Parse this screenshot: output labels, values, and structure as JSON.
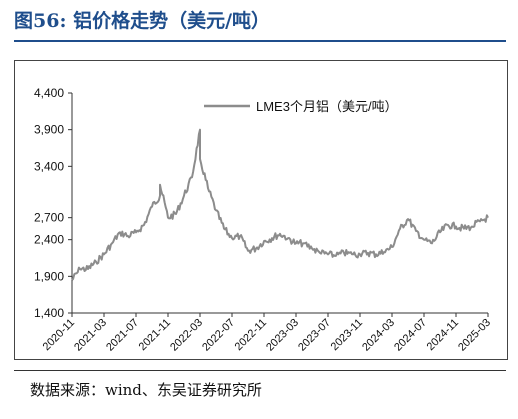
{
  "figure": {
    "title": "图56:  铝价格走势（美元/吨）",
    "source": "数据来源：wind、东吴证券研究所"
  },
  "chart_data": {
    "type": "line",
    "title": "",
    "xlabel": "",
    "ylabel": "",
    "ylim": [
      1400,
      4400
    ],
    "y_ticks": [
      1400,
      1900,
      2400,
      2700,
      3400,
      3900,
      4400
    ],
    "y_tick_labels": [
      "1,400",
      "1,900",
      "2,400",
      "2,700",
      "3,400",
      "3,900",
      "4,400"
    ],
    "x_tick_labels": [
      "2020-11",
      "2021-03",
      "2021-07",
      "2021-11",
      "2022-03",
      "2022-07",
      "2022-11",
      "2023-03",
      "2023-07",
      "2023-11",
      "2024-03",
      "2024-07",
      "2024-11",
      "2025-03"
    ],
    "legend_position": "top-right",
    "series_color": "#8c8c8c",
    "series": [
      {
        "name": "LME3个月铝（美元/吨）",
        "x": [
          "2020-11",
          "2020-12",
          "2021-01",
          "2021-02",
          "2021-03",
          "2021-04",
          "2021-05",
          "2021-06",
          "2021-07",
          "2021-08",
          "2021-09",
          "2021-10",
          "2021-10",
          "2021-11",
          "2021-12",
          "2022-01",
          "2022-02",
          "2022-03",
          "2022-03",
          "2022-03",
          "2022-04",
          "2022-05",
          "2022-06",
          "2022-07",
          "2022-08",
          "2022-09",
          "2022-10",
          "2022-11",
          "2022-12",
          "2023-01",
          "2023-02",
          "2023-03",
          "2023-04",
          "2023-05",
          "2023-06",
          "2023-07",
          "2023-08",
          "2023-09",
          "2023-10",
          "2023-11",
          "2023-12",
          "2024-01",
          "2024-02",
          "2024-03",
          "2024-04",
          "2024-05",
          "2024-06",
          "2024-07",
          "2024-08",
          "2024-09",
          "2024-10",
          "2024-11",
          "2024-12",
          "2025-01",
          "2025-02",
          "2025-03"
        ],
        "values": [
          1850,
          2000,
          2000,
          2100,
          2200,
          2350,
          2500,
          2450,
          2500,
          2600,
          2850,
          3000,
          3150,
          2700,
          2750,
          3000,
          3250,
          3900,
          3600,
          3500,
          3100,
          2800,
          2550,
          2420,
          2450,
          2250,
          2280,
          2380,
          2420,
          2480,
          2420,
          2350,
          2350,
          2280,
          2220,
          2200,
          2180,
          2220,
          2200,
          2200,
          2220,
          2200,
          2230,
          2300,
          2550,
          2680,
          2520,
          2400,
          2350,
          2500,
          2600,
          2580,
          2550,
          2580,
          2650,
          2700
        ]
      }
    ]
  }
}
